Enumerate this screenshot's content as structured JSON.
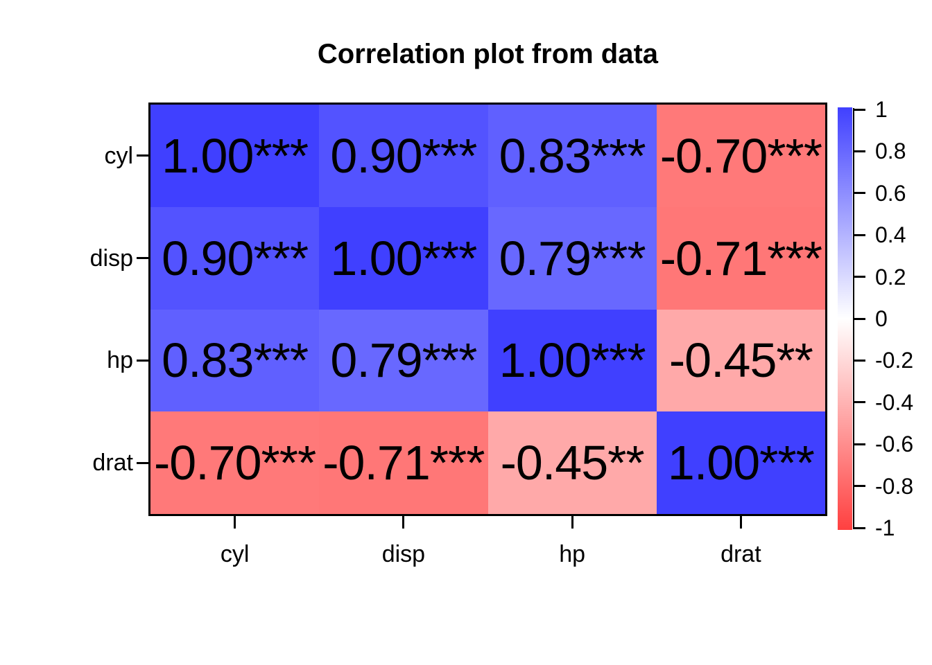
{
  "chart_data": {
    "type": "heatmap",
    "title": "Correlation plot from data",
    "x_categories": [
      "cyl",
      "disp",
      "hp",
      "drat"
    ],
    "y_categories": [
      "cyl",
      "disp",
      "hp",
      "drat"
    ],
    "matrix": [
      [
        1.0,
        0.9,
        0.83,
        -0.7
      ],
      [
        0.9,
        1.0,
        0.79,
        -0.71
      ],
      [
        0.83,
        0.79,
        1.0,
        -0.45
      ],
      [
        -0.7,
        -0.71,
        -0.45,
        1.0
      ]
    ],
    "cell_labels": [
      [
        "1.00***",
        "0.90***",
        "0.83***",
        "-0.70***"
      ],
      [
        "0.90***",
        "1.00***",
        "0.79***",
        "-0.71***"
      ],
      [
        "0.83***",
        "0.79***",
        "1.00***",
        "-0.45**"
      ],
      [
        "-0.70***",
        "-0.71***",
        "-0.45**",
        "1.00***"
      ]
    ],
    "value_text_color": "#000000",
    "colorbar": {
      "position": "right",
      "range": [
        -1,
        1
      ],
      "tick_labels": [
        "1",
        "0.8",
        "0.6",
        "0.4",
        "0.2",
        "0",
        "-0.2",
        "-0.4",
        "-0.6",
        "-0.8",
        "-1"
      ],
      "color_positive": "#4040FF",
      "color_zero": "#FFFFFF",
      "color_negative": "#FF4040"
    },
    "grid": false,
    "background": "#FFFFFF"
  }
}
